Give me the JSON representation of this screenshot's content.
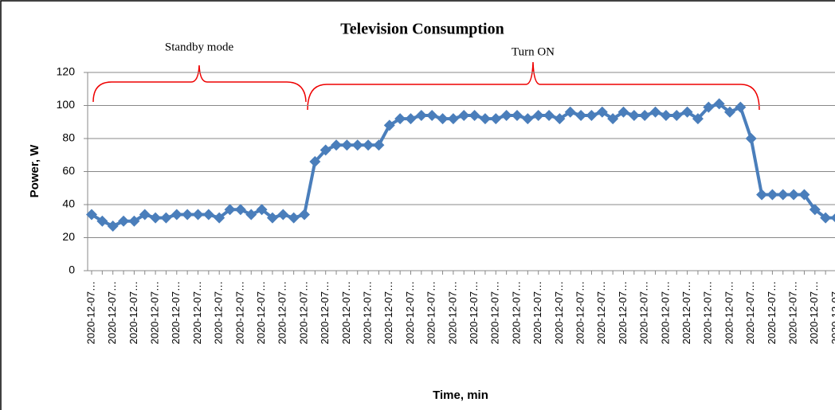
{
  "chart_data": {
    "type": "line",
    "title": "Television Consumption",
    "xlabel": "Time, min",
    "ylabel": "Power, W",
    "annotations": [
      "Standby mode",
      "Turn ON"
    ],
    "categories": [
      "2020-12-07…",
      null,
      "2020-12-07…",
      null,
      "2020-12-07…",
      null,
      "2020-12-07…",
      null,
      "2020-12-07…",
      null,
      "2020-12-07…",
      null,
      "2020-12-07…",
      null,
      "2020-12-07…",
      null,
      "2020-12-07…",
      null,
      "2020-12-07…",
      null,
      "2020-12-07…",
      null,
      "2020-12-07…",
      null,
      "2020-12-07…",
      null,
      "2020-12-07…",
      null,
      "2020-12-07…",
      null,
      "2020-12-07…",
      null,
      "2020-12-07…",
      null,
      "2020-12-07…",
      null,
      "2020-12-07…",
      null,
      "2020-12-07…",
      null,
      "2020-12-07…",
      null,
      "2020-12-07…",
      null,
      "2020-12-07…",
      null,
      "2020-12-07…",
      null,
      "2020-12-07…",
      null,
      "2020-12-07…",
      null,
      "2020-12-07…",
      null,
      "2020-12-07…",
      null,
      "2020-12-07…",
      null,
      "2020-12-07…",
      null,
      "2020-12-07…",
      null,
      "2020-12-07…",
      null,
      "2020-12-07…",
      null,
      "2020-12-07…",
      null,
      "2020-12-07…",
      null,
      "2020-12-07…"
    ],
    "series": [
      {
        "name": "Power",
        "color": "#4a7ebb",
        "values": [
          34,
          30,
          27,
          30,
          30,
          34,
          32,
          32,
          34,
          34,
          34,
          34,
          32,
          37,
          37,
          34,
          37,
          32,
          34,
          32,
          34,
          66,
          73,
          76,
          76,
          76,
          76,
          76,
          88,
          92,
          92,
          94,
          94,
          92,
          92,
          94,
          94,
          92,
          92,
          94,
          94,
          92,
          94,
          94,
          92,
          96,
          94,
          94,
          96,
          92,
          96,
          94,
          94,
          96,
          94,
          94,
          96,
          92,
          99,
          101,
          96,
          99,
          80,
          46,
          46,
          46,
          46,
          46,
          37,
          32,
          32
        ]
      }
    ],
    "ylim": [
      0,
      120
    ],
    "yticks": [
      0,
      20,
      40,
      60,
      80,
      100,
      120
    ],
    "grid": true
  }
}
